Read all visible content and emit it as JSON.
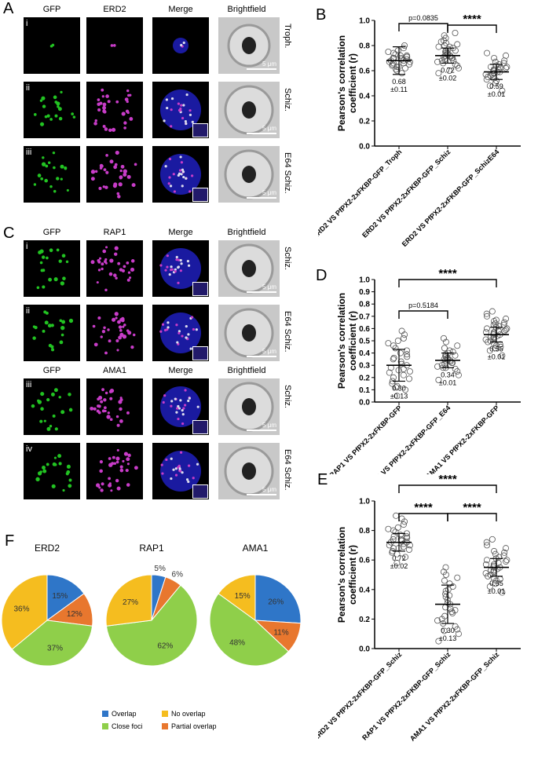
{
  "panel_letters": {
    "A": "A",
    "B": "B",
    "C": "C",
    "D": "D",
    "E": "E",
    "F": "F"
  },
  "panel_A": {
    "headers": [
      "GFP",
      "ERD2",
      "Merge",
      "Brightfield"
    ],
    "rows": [
      {
        "roman": "i",
        "label": "Troph."
      },
      {
        "roman": "ii",
        "label": "Schiz."
      },
      {
        "roman": "iii",
        "label": "E64 Schiz."
      }
    ],
    "scale": "5 μm"
  },
  "panel_C": {
    "headers_top": [
      "GFP",
      "RAP1",
      "Merge",
      "Brightfield"
    ],
    "headers_bottom": [
      "GFP",
      "AMA1",
      "Merge",
      "Brightfield"
    ],
    "rows": [
      {
        "roman": "i",
        "label": "Schiz."
      },
      {
        "roman": "ii",
        "label": "E64 Schiz."
      },
      {
        "roman": "iii",
        "label": "Schiz."
      },
      {
        "roman": "iv",
        "label": "E64 Schiz."
      }
    ],
    "scale": "5 μm"
  },
  "colors": {
    "gfp": "#22c322",
    "magenta": "#c83cc8",
    "merge_bg": "#1a1aa0",
    "overlap": "#2f76c8",
    "partial": "#e8772e",
    "close": "#8fcf4a",
    "nooverlap": "#f5bd1f"
  },
  "chart_data": [
    {
      "type": "scatter",
      "panel": "B",
      "ylabel": "Pearson's correlation coefficient (r)",
      "ylim": [
        0,
        1.0
      ],
      "yticks": [
        "0.0",
        "0.2",
        "0.4",
        "0.6",
        "0.8",
        "1.0"
      ],
      "categories": [
        "ERD2 VS PfPX2-2xFKBP-GFP_Troph",
        "ERD2 VS PfPX2-2xFKBP-GFP_Schiz",
        "ERD2 VS PfPX2-2xFKBP-GFP_SchizE64"
      ],
      "means": [
        0.68,
        0.72,
        0.59
      ],
      "errors": [
        0.11,
        0.02,
        0.01
      ],
      "labels": [
        "0.68\n±0.11",
        "0.72\n±0.02",
        "0.59\n±0.01"
      ],
      "points": [
        [
          0.6,
          0.62,
          0.63,
          0.64,
          0.65,
          0.65,
          0.66,
          0.66,
          0.67,
          0.67,
          0.68,
          0.68,
          0.69,
          0.69,
          0.7,
          0.7,
          0.71,
          0.71,
          0.72,
          0.72,
          0.73,
          0.74,
          0.75,
          0.76,
          0.78,
          0.8,
          0.58,
          0.61,
          0.63,
          0.7
        ],
        [
          0.58,
          0.62,
          0.64,
          0.65,
          0.66,
          0.67,
          0.68,
          0.69,
          0.7,
          0.7,
          0.71,
          0.72,
          0.72,
          0.73,
          0.74,
          0.74,
          0.75,
          0.76,
          0.77,
          0.78,
          0.79,
          0.8,
          0.81,
          0.82,
          0.84,
          0.86,
          0.88,
          0.9,
          0.6,
          0.68,
          0.71,
          0.76,
          0.79,
          0.83
        ],
        [
          0.44,
          0.48,
          0.5,
          0.52,
          0.54,
          0.55,
          0.56,
          0.57,
          0.58,
          0.58,
          0.59,
          0.59,
          0.6,
          0.6,
          0.61,
          0.61,
          0.62,
          0.63,
          0.64,
          0.65,
          0.66,
          0.67,
          0.68,
          0.7,
          0.72,
          0.74,
          0.53,
          0.57,
          0.62,
          0.63
        ]
      ],
      "comparisons": [
        {
          "from": 0,
          "to": 1,
          "text": "p=0.0835"
        },
        {
          "from": 1,
          "to": 2,
          "text": "****"
        }
      ]
    },
    {
      "type": "scatter",
      "panel": "D",
      "ylabel": "Pearson's correlation coefficient (r)",
      "ylim": [
        0,
        1.0
      ],
      "yticks": [
        "0.0",
        "0.1",
        "0.2",
        "0.3",
        "0.4",
        "0.5",
        "0.6",
        "0.7",
        "0.8",
        "0.9",
        "1.0"
      ],
      "categories": [
        "RAP1 VS PfPX2-2xFKBP-GFP",
        "RAP1 VS PfPX2-2xFKBP-GFP_E64",
        "AMA1 VS PfPX2-2xFKBP-GFP"
      ],
      "means": [
        0.3,
        0.34,
        0.55
      ],
      "errors": [
        0.13,
        0.01,
        0.01
      ],
      "labels": [
        "0.30\n±0.13",
        "0.34\n±0.01",
        "0.55\n±0.01"
      ],
      "points": [
        [
          0.05,
          0.1,
          0.13,
          0.15,
          0.17,
          0.19,
          0.2,
          0.22,
          0.24,
          0.25,
          0.27,
          0.28,
          0.3,
          0.31,
          0.33,
          0.35,
          0.37,
          0.39,
          0.4,
          0.42,
          0.44,
          0.46,
          0.48,
          0.5,
          0.52,
          0.55,
          0.58,
          0.12,
          0.26,
          0.36
        ],
        [
          0.18,
          0.22,
          0.25,
          0.27,
          0.28,
          0.29,
          0.3,
          0.31,
          0.32,
          0.32,
          0.33,
          0.34,
          0.34,
          0.35,
          0.36,
          0.37,
          0.38,
          0.39,
          0.4,
          0.41,
          0.42,
          0.44,
          0.46,
          0.49,
          0.52,
          0.28,
          0.35,
          0.38
        ],
        [
          0.38,
          0.42,
          0.44,
          0.46,
          0.48,
          0.49,
          0.5,
          0.51,
          0.52,
          0.53,
          0.54,
          0.55,
          0.55,
          0.56,
          0.57,
          0.58,
          0.59,
          0.6,
          0.61,
          0.62,
          0.63,
          0.64,
          0.65,
          0.66,
          0.68,
          0.7,
          0.72,
          0.74,
          0.47,
          0.53,
          0.57,
          0.6,
          0.63,
          0.67,
          0.45,
          0.58
        ]
      ],
      "comparisons": [
        {
          "from": 0,
          "to": 1,
          "text": "p=0.5184"
        },
        {
          "from": 0,
          "to": 2,
          "text": "****"
        }
      ]
    },
    {
      "type": "scatter",
      "panel": "E",
      "ylabel": "Pearson's correlation coefficient (r)",
      "ylim": [
        0,
        1.0
      ],
      "yticks": [
        "0.0",
        "0.2",
        "0.4",
        "0.6",
        "0.8",
        "1.0"
      ],
      "categories": [
        "ERD2 VS PfPX2-2xFKBP-GFP_Schiz",
        "RAP1 VS PfPX2-2xFKBP-GFP_Schiz",
        "AMA1 VS PfPX2-2xFKBP-GFP_Schiz"
      ],
      "means": [
        0.72,
        0.3,
        0.55
      ],
      "errors": [
        0.02,
        0.13,
        0.01
      ],
      "labels": [
        "0.72\n±0.02",
        "0.30\n±0.13",
        "0.55\n±0.01"
      ],
      "points": [
        [
          0.58,
          0.62,
          0.64,
          0.65,
          0.66,
          0.67,
          0.68,
          0.69,
          0.7,
          0.7,
          0.71,
          0.72,
          0.72,
          0.73,
          0.74,
          0.74,
          0.75,
          0.76,
          0.77,
          0.78,
          0.79,
          0.8,
          0.81,
          0.82,
          0.84,
          0.86,
          0.88,
          0.9,
          0.68,
          0.76
        ],
        [
          0.05,
          0.1,
          0.13,
          0.15,
          0.17,
          0.19,
          0.2,
          0.22,
          0.24,
          0.25,
          0.27,
          0.28,
          0.3,
          0.31,
          0.33,
          0.35,
          0.37,
          0.39,
          0.4,
          0.42,
          0.44,
          0.46,
          0.48,
          0.5,
          0.52,
          0.55,
          0.12,
          0.26,
          0.36
        ],
        [
          0.38,
          0.42,
          0.44,
          0.46,
          0.48,
          0.49,
          0.5,
          0.51,
          0.52,
          0.53,
          0.54,
          0.55,
          0.55,
          0.56,
          0.57,
          0.58,
          0.59,
          0.6,
          0.61,
          0.62,
          0.63,
          0.64,
          0.65,
          0.66,
          0.68,
          0.7,
          0.72,
          0.74,
          0.47,
          0.53,
          0.57,
          0.6
        ]
      ],
      "comparisons": [
        {
          "from": 0,
          "to": 1,
          "text": "****"
        },
        {
          "from": 1,
          "to": 2,
          "text": "****"
        },
        {
          "from": 0,
          "to": 2,
          "text": "****"
        }
      ]
    },
    {
      "type": "pie",
      "panel": "F",
      "charts": [
        {
          "title": "ERD2",
          "slices": [
            {
              "label": "Overlap",
              "value": 15
            },
            {
              "label": "Partial overlap",
              "value": 12
            },
            {
              "label": "Close foci",
              "value": 37
            },
            {
              "label": "No overlap",
              "value": 36
            }
          ]
        },
        {
          "title": "RAP1",
          "slices": [
            {
              "label": "Overlap",
              "value": 5
            },
            {
              "label": "Partial overlap",
              "value": 6
            },
            {
              "label": "Close foci",
              "value": 62
            },
            {
              "label": "No overlap",
              "value": 27
            }
          ]
        },
        {
          "title": "AMA1",
          "slices": [
            {
              "label": "Overlap",
              "value": 26
            },
            {
              "label": "Partial overlap",
              "value": 11
            },
            {
              "label": "Close foci",
              "value": 48
            },
            {
              "label": "No overlap",
              "value": 15
            }
          ]
        }
      ],
      "legend": [
        "Overlap",
        "No overlap",
        "Close foci",
        "Partial overlap"
      ]
    }
  ]
}
